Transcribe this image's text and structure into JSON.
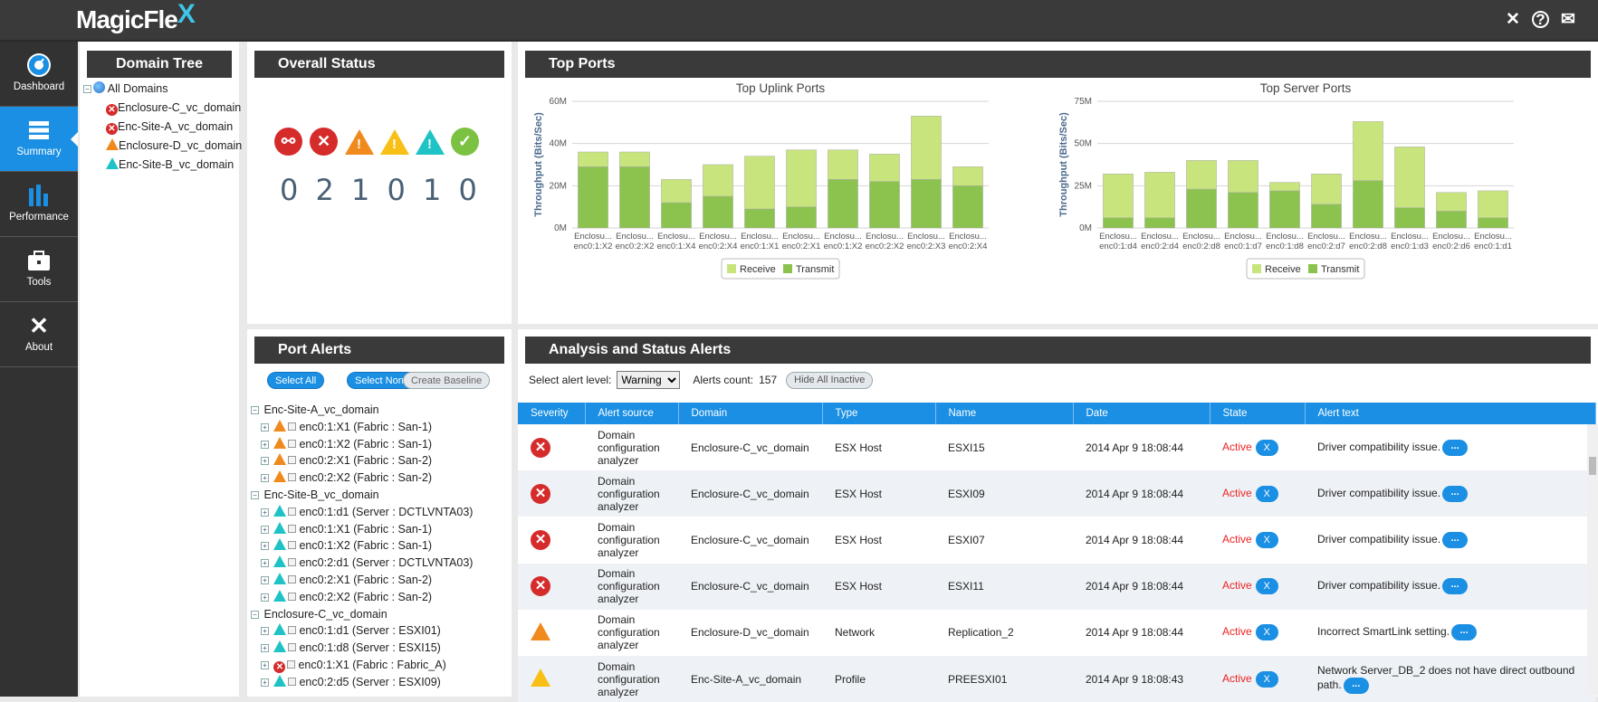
{
  "app": {
    "logo_text": "MagicFle",
    "logo_accent": "X",
    "accent_color": "#1a8fe3"
  },
  "topbar": {
    "icons": [
      "x-icon",
      "help-icon",
      "mail-icon"
    ]
  },
  "nav": [
    {
      "label": "Dashboard",
      "icon": "dashboard-icon"
    },
    {
      "label": "Summary",
      "icon": "summary-icon"
    },
    {
      "label": "Performance",
      "icon": "performance-icon"
    },
    {
      "label": "Tools",
      "icon": "tools-icon"
    },
    {
      "label": "About",
      "icon": "about-icon"
    }
  ],
  "domain_tree": {
    "title": "Domain Tree",
    "root": "All Domains",
    "items": [
      {
        "label": "Enclosure-C_vc_domain",
        "status": "error"
      },
      {
        "label": "Enc-Site-A_vc_domain",
        "status": "error"
      },
      {
        "label": "Enclosure-D_vc_domain",
        "status": "warning"
      },
      {
        "label": "Enc-Site-B_vc_domain",
        "status": "info"
      }
    ]
  },
  "overall_status": {
    "title": "Overall Status",
    "counts": [
      "0",
      "2",
      "1",
      "0",
      "1",
      "0"
    ]
  },
  "top_ports": {
    "title": "Top Ports"
  },
  "chart_data": [
    {
      "type": "bar",
      "title": "Top Uplink Ports",
      "ylabel": "Throughput (Bits/Sec)",
      "ylim": [
        0,
        60
      ],
      "yticks": [
        "0M",
        "20M",
        "40M",
        "60M"
      ],
      "categories": [
        [
          "Enclosu...",
          "enc0:1:X2"
        ],
        [
          "Enclosu...",
          "enc0:2:X2"
        ],
        [
          "Enclosu...",
          "enc0:1:X4"
        ],
        [
          "Enclosu...",
          "enc0:2:X4"
        ],
        [
          "Enclosu...",
          "enc0:1:X1"
        ],
        [
          "Enclosu...",
          "enc0:2:X1"
        ],
        [
          "Enclosu...",
          "enc0:1:X2"
        ],
        [
          "Enclosu...",
          "enc0:2:X2"
        ],
        [
          "Enclosu...",
          "enc0:2:X3"
        ],
        [
          "Enclosu...",
          "enc0:2:X4"
        ]
      ],
      "series": [
        {
          "name": "Receive",
          "values": [
            7,
            7,
            11,
            15,
            25,
            27,
            14,
            13,
            30,
            9
          ]
        },
        {
          "name": "Transmit",
          "values": [
            29,
            29,
            12,
            15,
            9,
            10,
            23,
            22,
            23,
            20
          ]
        }
      ],
      "legend": [
        "Receive",
        "Transmit"
      ]
    },
    {
      "type": "bar",
      "title": "Top Server Ports",
      "ylabel": "Throughput (Bits/Sec)",
      "ylim": [
        0,
        75
      ],
      "yticks": [
        "0M",
        "25M",
        "50M",
        "75M"
      ],
      "categories": [
        [
          "Enclosu...",
          "enc0:1:d4"
        ],
        [
          "Enclosu...",
          "enc0:2:d4"
        ],
        [
          "Enclosu...",
          "enc0:2:d8"
        ],
        [
          "Enclosu...",
          "enc0:1:d7"
        ],
        [
          "Enclosu...",
          "enc0:1:d8"
        ],
        [
          "Enclosu...",
          "enc0:2:d7"
        ],
        [
          "Enclosu...",
          "enc0:2:d8"
        ],
        [
          "Enclosu...",
          "enc0:1:d3"
        ],
        [
          "Enclosu...",
          "enc0:2:d6"
        ],
        [
          "Enclosu...",
          "enc0:1:d1"
        ]
      ],
      "series": [
        {
          "name": "Receive",
          "values": [
            26,
            27,
            17,
            19,
            5,
            18,
            35,
            36,
            11,
            16
          ]
        },
        {
          "name": "Transmit",
          "values": [
            6,
            6,
            23,
            21,
            22,
            14,
            28,
            12,
            10,
            6
          ]
        }
      ],
      "legend": [
        "Receive",
        "Transmit"
      ]
    }
  ],
  "port_alerts": {
    "title": "Port Alerts",
    "select_all": "Select All",
    "select_none": "Select None",
    "create_baseline": "Create Baseline",
    "tree": [
      {
        "label": "Enc-Site-A_vc_domain",
        "ports": [
          {
            "label": "enc0:1:X1 (Fabric : San-1)",
            "status": "warning"
          },
          {
            "label": "enc0:1:X2 (Fabric : San-1)",
            "status": "warning"
          },
          {
            "label": "enc0:2:X1 (Fabric : San-2)",
            "status": "warning"
          },
          {
            "label": "enc0:2:X2 (Fabric : San-2)",
            "status": "warning"
          }
        ]
      },
      {
        "label": "Enc-Site-B_vc_domain",
        "ports": [
          {
            "label": "enc0:1:d1 (Server : DCTLVNTA03)",
            "status": "info"
          },
          {
            "label": "enc0:1:X1 (Fabric : San-1)",
            "status": "info"
          },
          {
            "label": "enc0:1:X2 (Fabric : San-1)",
            "status": "info"
          },
          {
            "label": "enc0:2:d1 (Server : DCTLVNTA03)",
            "status": "info"
          },
          {
            "label": "enc0:2:X1 (Fabric : San-2)",
            "status": "info"
          },
          {
            "label": "enc0:2:X2 (Fabric : San-2)",
            "status": "info"
          }
        ]
      },
      {
        "label": "Enclosure-C_vc_domain",
        "ports": [
          {
            "label": "enc0:1:d1 (Server : ESXI01)",
            "status": "info"
          },
          {
            "label": "enc0:1:d8 (Server : ESXI15)",
            "status": "info"
          },
          {
            "label": "enc0:1:X1 (Fabric : Fabric_A)",
            "status": "error"
          },
          {
            "label": "enc0:2:d5 (Server : ESXI09)",
            "status": "info"
          }
        ]
      }
    ]
  },
  "analysis": {
    "title": "Analysis and Status Alerts",
    "level_label": "Select alert level:",
    "level_value": "Warning",
    "count_label": "Alerts count:",
    "count_value": "157",
    "hide_inactive": "Hide All Inactive",
    "columns": [
      "Severity",
      "Alert source",
      "Domain",
      "Type",
      "Name",
      "Date",
      "State",
      "Alert text"
    ],
    "rows": [
      {
        "severity": "error",
        "source": "Domain configuration analyzer",
        "domain": "Enclosure-C_vc_domain",
        "type": "ESX Host",
        "name": "ESXI15",
        "date": "2014 Apr 9 18:08:44",
        "state": "Active",
        "x": "X",
        "text": "Driver compatibility issue.",
        "more": "..."
      },
      {
        "severity": "error",
        "source": "Domain configuration analyzer",
        "domain": "Enclosure-C_vc_domain",
        "type": "ESX Host",
        "name": "ESXI09",
        "date": "2014 Apr 9 18:08:44",
        "state": "Active",
        "x": "X",
        "text": "Driver compatibility issue.",
        "more": "..."
      },
      {
        "severity": "error",
        "source": "Domain configuration analyzer",
        "domain": "Enclosure-C_vc_domain",
        "type": "ESX Host",
        "name": "ESXI07",
        "date": "2014 Apr 9 18:08:44",
        "state": "Active",
        "x": "X",
        "text": "Driver compatibility issue.",
        "more": "..."
      },
      {
        "severity": "error",
        "source": "Domain configuration analyzer",
        "domain": "Enclosure-C_vc_domain",
        "type": "ESX Host",
        "name": "ESXI11",
        "date": "2014 Apr 9 18:08:44",
        "state": "Active",
        "x": "X",
        "text": "Driver compatibility issue.",
        "more": "..."
      },
      {
        "severity": "warning",
        "source": "Domain configuration analyzer",
        "domain": "Enclosure-D_vc_domain",
        "type": "Network",
        "name": "Replication_2",
        "date": "2014 Apr 9 18:08:44",
        "state": "Active",
        "x": "X",
        "text": "Incorrect SmartLink setting.",
        "more": "..."
      },
      {
        "severity": "minor",
        "source": "Domain configuration analyzer",
        "domain": "Enc-Site-A_vc_domain",
        "type": "Profile",
        "name": "PREESXI01",
        "date": "2014 Apr 9 18:08:43",
        "state": "Active",
        "x": "X",
        "text": "Network Server_DB_2 does not have direct outbound path.",
        "more": "..."
      }
    ]
  }
}
